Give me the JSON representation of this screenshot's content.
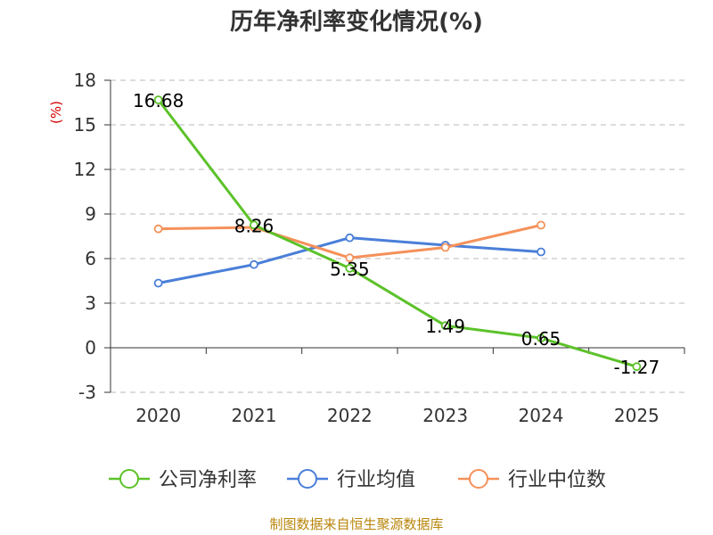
{
  "source": "制图数据来自恒生聚源数据库",
  "chart_data": {
    "type": "line",
    "title": "历年净利率变化情况(%)",
    "unit": "(%)",
    "x": [
      "2020",
      "2021",
      "2022",
      "2023",
      "2024",
      "2025"
    ],
    "ylim": [
      -3,
      18
    ],
    "yticks": [
      -3,
      0,
      3,
      6,
      9,
      12,
      15,
      18
    ],
    "ytick_labels": [
      "-3",
      "0",
      "3",
      "6",
      "9",
      "12",
      "15",
      "18"
    ],
    "grid": true,
    "legend_position": "bottom",
    "series": [
      {
        "name": "公司净利率",
        "color": "#5cc22a",
        "values": [
          16.68,
          8.26,
          5.35,
          1.49,
          0.65,
          -1.27
        ],
        "labels": [
          "16.68",
          "8.26",
          "5.35",
          "1.49",
          "0.65",
          "-1.27"
        ]
      },
      {
        "name": "行业均值",
        "color": "#4a7fd9",
        "values": [
          4.35,
          5.6,
          7.4,
          6.9,
          6.45,
          null
        ],
        "labels": []
      },
      {
        "name": "行业中位数",
        "color": "#f5915a",
        "values": [
          8.0,
          8.1,
          6.05,
          6.75,
          8.25,
          null
        ],
        "labels": []
      }
    ]
  }
}
